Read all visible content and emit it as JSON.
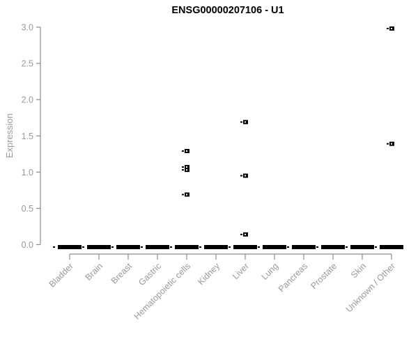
{
  "chart_data": {
    "type": "scatter",
    "subtype": "collapsed-boxplot-with-outliers",
    "title": "ENSG00000207106 - U1",
    "xlabel": "",
    "ylabel": "Expression",
    "ylim": [
      0,
      3
    ],
    "ytick_labels": [
      "0.0",
      "0.5",
      "1.0",
      "1.5",
      "2.0",
      "2.5",
      "3.0"
    ],
    "grid": false,
    "legend": "none",
    "categories": [
      "Bladder",
      "Brain",
      "Breast",
      "Gastric",
      "Hematopoietic cells",
      "Kidney",
      "Liver",
      "Lung",
      "Pancreas",
      "Prostate",
      "Skin",
      "Unknown / Other"
    ],
    "baseline": {
      "value": 0,
      "note": "every category shows a thick black dash of overlapping points at expression 0"
    },
    "outliers": [
      {
        "category": "Hematopoietic cells",
        "values": [
          1.31,
          1.09,
          1.05,
          0.71
        ]
      },
      {
        "category": "Liver",
        "values": [
          1.71,
          0.97,
          0.16
        ]
      },
      {
        "category": "Unknown / Other",
        "values": [
          3.0,
          1.41
        ]
      }
    ],
    "colors": {
      "marker": "#000000",
      "axis": "#8c8c8c",
      "tick_label": "#999999",
      "title": "#000000",
      "background": "#ffffff"
    }
  }
}
